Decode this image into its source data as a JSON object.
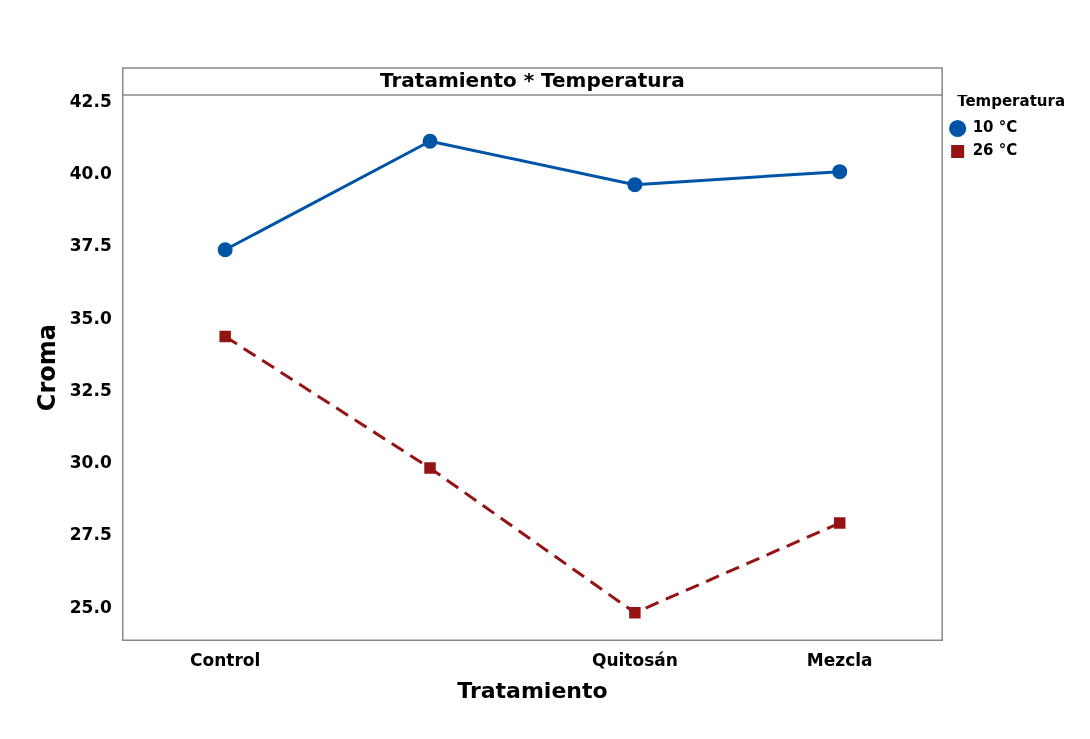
{
  "chart_data": {
    "type": "line",
    "title": "Tratamiento * Temperatura",
    "xlabel": "Tratamiento",
    "ylabel": "Croma",
    "legend_title": "Temperatura",
    "legend": "top right",
    "grid": false,
    "categories": [
      "Control",
      null,
      "Quitosán",
      "Mezcla"
    ],
    "ylim": [
      23.9,
      42.75
    ],
    "yticks": [
      {
        "value": 25,
        "label": "25.0"
      },
      27.5,
      {
        "value": 30,
        "label": "30.0"
      },
      32.5,
      {
        "value": 35,
        "label": "35.0"
      },
      37.5,
      {
        "value": 40,
        "label": "40.0"
      },
      42.5
    ],
    "series": [
      {
        "name": "10 °C",
        "color": "#0054a6",
        "marker": "circle",
        "line_style": "solid",
        "values": [
          37.4,
          41.15,
          39.65,
          40.1
        ]
      },
      {
        "name": "26 °C",
        "color": "#941414",
        "marker": "square",
        "line_style": "dashed",
        "values": [
          34.4,
          29.85,
          24.85,
          27.95
        ]
      }
    ]
  }
}
